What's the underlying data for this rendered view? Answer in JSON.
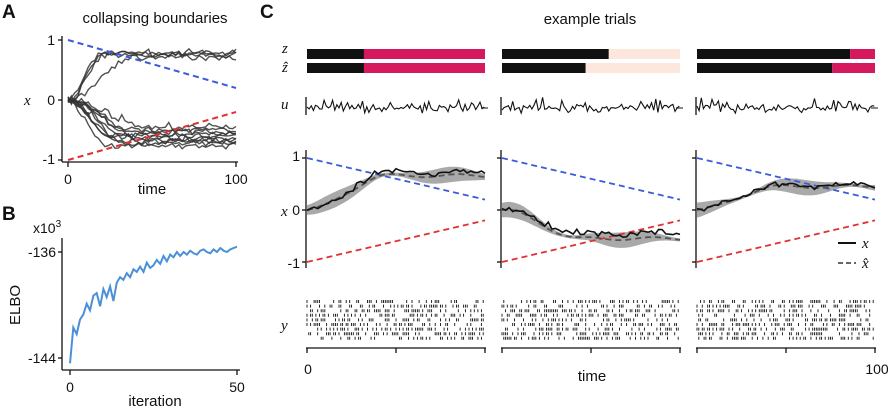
{
  "panels": {
    "A": {
      "letter": "A",
      "title": "collapsing boundaries",
      "ylabel": "x",
      "xlabel": "time",
      "yticks": [
        "1",
        "0",
        "-1"
      ],
      "xticks": [
        "0",
        "100"
      ]
    },
    "B": {
      "letter": "B",
      "exponent": "x10",
      "exponent_power": "3",
      "ylabel": "ELBO",
      "xlabel": "iteration",
      "yticks": [
        "-136",
        "-144"
      ],
      "xticks": [
        "0",
        "50"
      ]
    },
    "C": {
      "letter": "C",
      "title": "example trials",
      "row_labels": {
        "z": "z",
        "zhat": "ẑ",
        "u": "u",
        "x": "x",
        "y": "y"
      },
      "yticks": [
        "1",
        "0",
        "-1"
      ],
      "xticks": [
        "0",
        "100"
      ],
      "xlabel": "time",
      "legend": {
        "x": "x",
        "xhat": "x̂"
      }
    }
  },
  "colors": {
    "boundary_upper": "#3b5bdb",
    "boundary_lower": "#e03131",
    "elbo_line": "#4a90d9",
    "state_dark": "#111111",
    "state_magenta": "#d6195f",
    "state_peach": "#fde6dc",
    "trajectory": "#333333",
    "band": "#9a9a9a"
  },
  "chart_data": [
    {
      "panel": "A",
      "type": "line",
      "title": "collapsing boundaries",
      "xlabel": "time",
      "ylabel": "x",
      "xlim": [
        0,
        100
      ],
      "ylim": [
        -1,
        1
      ],
      "boundaries": {
        "upper": [
          [
            0,
            1.0
          ],
          [
            100,
            0.2
          ]
        ],
        "lower": [
          [
            0,
            -1.0
          ],
          [
            100,
            -0.2
          ]
        ]
      },
      "n_trajectories": 14,
      "trajectory_endpoints": [
        0.78,
        0.77,
        0.74,
        0.72,
        -0.45,
        -0.5,
        -0.53,
        -0.57,
        -0.6,
        -0.63,
        -0.66,
        -0.7,
        -0.72,
        -0.76
      ]
    },
    {
      "panel": "B",
      "type": "line",
      "xlabel": "iteration",
      "ylabel": "ELBO",
      "y_scale_label": "x10^3",
      "xlim": [
        0,
        50
      ],
      "ylim": [
        -144.5,
        -135.5
      ],
      "x": [
        0,
        1,
        2,
        3,
        4,
        5,
        6,
        7,
        8,
        9,
        10,
        11,
        12,
        13,
        14,
        15,
        16,
        17,
        18,
        19,
        20,
        21,
        22,
        23,
        24,
        25,
        26,
        27,
        28,
        29,
        30,
        31,
        32,
        33,
        34,
        35,
        36,
        37,
        38,
        39,
        40,
        41,
        42,
        43,
        44,
        45,
        46,
        47,
        48,
        49,
        50
      ],
      "y": [
        -144.4,
        -141.7,
        -142.2,
        -141.1,
        -140.7,
        -139.9,
        -140.4,
        -139.3,
        -139.1,
        -140.1,
        -138.8,
        -139.4,
        -138.6,
        -139.7,
        -138.3,
        -137.9,
        -138.1,
        -137.6,
        -137.9,
        -137.3,
        -137.5,
        -137.1,
        -137.5,
        -136.8,
        -137.2,
        -137.0,
        -136.6,
        -136.9,
        -136.3,
        -136.7,
        -136.2,
        -136.4,
        -136.0,
        -136.3,
        -136.0,
        -136.2,
        -135.9,
        -136.1,
        -136.2,
        -135.9,
        -135.8,
        -136.0,
        -136.1,
        -135.8,
        -136.0,
        -135.7,
        -135.9,
        -136.0,
        -135.8,
        -135.7,
        -135.6
      ]
    },
    {
      "panel": "C",
      "type": "line",
      "title": "example trials",
      "xlabel": "time",
      "ylabel": "x",
      "xlim": [
        0,
        100
      ],
      "ylim": [
        -1,
        1
      ],
      "trials": [
        {
          "z": [
            {
              "from": 0,
              "to": 32,
              "state": "dark"
            },
            {
              "from": 32,
              "to": 100,
              "state": "magenta"
            }
          ],
          "zhat": [
            {
              "from": 0,
              "to": 32,
              "state": "dark"
            },
            {
              "from": 32,
              "to": 100,
              "state": "magenta"
            }
          ],
          "x_final": 0.72,
          "xhat_final": 0.66,
          "boundaries": {
            "upper": [
              [
                0,
                1.0
              ],
              [
                100,
                0.2
              ]
            ],
            "lower": [
              [
                0,
                -1.0
              ],
              [
                100,
                -0.2
              ]
            ]
          }
        },
        {
          "z": [
            {
              "from": 0,
              "to": 60,
              "state": "dark"
            },
            {
              "from": 60,
              "to": 100,
              "state": "peach"
            }
          ],
          "zhat": [
            {
              "from": 0,
              "to": 47,
              "state": "dark"
            },
            {
              "from": 47,
              "to": 100,
              "state": "peach"
            }
          ],
          "x_final": -0.45,
          "xhat_final": -0.55,
          "boundaries": {
            "upper": [
              [
                0,
                1.0
              ],
              [
                100,
                0.2
              ]
            ],
            "lower": [
              [
                0,
                -1.0
              ],
              [
                100,
                -0.2
              ]
            ]
          }
        },
        {
          "z": [
            {
              "from": 0,
              "to": 86,
              "state": "dark"
            },
            {
              "from": 86,
              "to": 100,
              "state": "magenta"
            }
          ],
          "zhat": [
            {
              "from": 0,
              "to": 76,
              "state": "dark"
            },
            {
              "from": 76,
              "to": 100,
              "state": "magenta"
            }
          ],
          "x_final": 0.48,
          "xhat_final": 0.45,
          "boundaries": {
            "upper": [
              [
                0,
                1.0
              ],
              [
                100,
                0.2
              ]
            ],
            "lower": [
              [
                0,
                -1.0
              ],
              [
                100,
                -0.2
              ]
            ]
          }
        }
      ],
      "legend": [
        "x",
        "x̂"
      ]
    }
  ]
}
